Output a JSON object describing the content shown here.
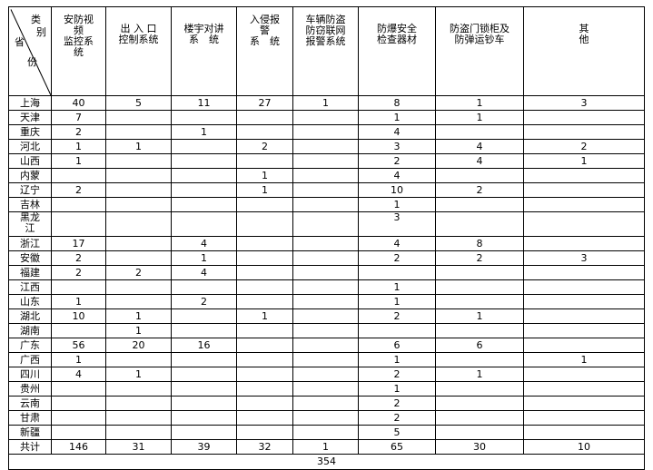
{
  "corner": {
    "top1": "类",
    "top2": "别",
    "left": "省",
    "bottom": "份"
  },
  "columns": [
    "安防视\n频\n监控系\n统",
    "出 入 口\n控制系统",
    "楼宇对讲\n系　统",
    "入侵报\n警\n系　统",
    "车辆防盗\n防窃联网\n报警系统",
    "防爆安全\n检查器材",
    "防盗门锁柜及\n防弹运钞车",
    "其\n他"
  ],
  "rows": [
    {
      "province": "上海",
      "values": [
        "40",
        "5",
        "11",
        "27",
        "1",
        "8",
        "1",
        "3"
      ]
    },
    {
      "province": "天津",
      "values": [
        "7",
        "",
        "",
        "",
        "",
        "1",
        "1",
        ""
      ]
    },
    {
      "province": "重庆",
      "values": [
        "2",
        "",
        "1",
        "",
        "",
        "4",
        "",
        ""
      ]
    },
    {
      "province": "河北",
      "values": [
        "1",
        "1",
        "",
        "2",
        "",
        "3",
        "4",
        "2"
      ]
    },
    {
      "province": "山西",
      "values": [
        "1",
        "",
        "",
        "",
        "",
        "2",
        "4",
        "1"
      ]
    },
    {
      "province": "内蒙",
      "values": [
        "",
        "",
        "",
        "1",
        "",
        "4",
        "",
        ""
      ]
    },
    {
      "province": "辽宁",
      "values": [
        "2",
        "",
        "",
        "1",
        "",
        "10",
        "2",
        ""
      ]
    },
    {
      "province": "吉林",
      "values": [
        "",
        "",
        "",
        "",
        "",
        "1",
        "",
        ""
      ]
    },
    {
      "province": "黑龙江",
      "values": [
        "",
        "",
        "",
        "",
        "",
        "3",
        "",
        ""
      ]
    },
    {
      "province": "浙江",
      "values": [
        "17",
        "",
        "4",
        "",
        "",
        "4",
        "8",
        ""
      ]
    },
    {
      "province": "安徽",
      "values": [
        "2",
        "",
        "1",
        "",
        "",
        "2",
        "2",
        "3"
      ]
    },
    {
      "province": "福建",
      "values": [
        "2",
        "2",
        "4",
        "",
        "",
        "",
        "",
        ""
      ]
    },
    {
      "province": "江西",
      "values": [
        "",
        "",
        "",
        "",
        "",
        "1",
        "",
        ""
      ]
    },
    {
      "province": "山东",
      "values": [
        "1",
        "",
        "2",
        "",
        "",
        "1",
        "",
        ""
      ]
    },
    {
      "province": "湖北",
      "values": [
        "10",
        "1",
        "",
        "1",
        "",
        "2",
        "1",
        ""
      ]
    },
    {
      "province": "湖南",
      "values": [
        "",
        "1",
        "",
        "",
        "",
        "",
        "",
        ""
      ]
    },
    {
      "province": "广东",
      "values": [
        "56",
        "20",
        "16",
        "",
        "",
        "6",
        "6",
        ""
      ]
    },
    {
      "province": "广西",
      "values": [
        "1",
        "",
        "",
        "",
        "",
        "1",
        "",
        "1"
      ]
    },
    {
      "province": "四川",
      "values": [
        "4",
        "1",
        "",
        "",
        "",
        "2",
        "1",
        ""
      ]
    },
    {
      "province": "贵州",
      "values": [
        "",
        "",
        "",
        "",
        "",
        "1",
        "",
        ""
      ]
    },
    {
      "province": "云南",
      "values": [
        "",
        "",
        "",
        "",
        "",
        "2",
        "",
        ""
      ]
    },
    {
      "province": "甘肃",
      "values": [
        "",
        "",
        "",
        "",
        "",
        "2",
        "",
        ""
      ]
    },
    {
      "province": "新疆",
      "values": [
        "",
        "",
        "",
        "",
        "",
        "5",
        "",
        ""
      ]
    }
  ],
  "total": {
    "label": "共计",
    "values": [
      "146",
      "31",
      "39",
      "32",
      "1",
      "65",
      "30",
      "10"
    ]
  },
  "grand_total": "354"
}
